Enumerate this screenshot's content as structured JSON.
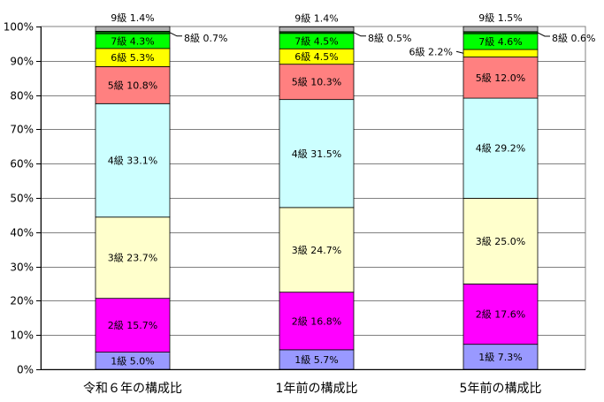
{
  "chart_data": {
    "type": "bar",
    "stacked": true,
    "percent": true,
    "title": "",
    "xlabel": "",
    "ylabel": "",
    "ylim": [
      0,
      100
    ],
    "y_ticks": [
      "0%",
      "10%",
      "20%",
      "30%",
      "40%",
      "50%",
      "60%",
      "70%",
      "80%",
      "90%",
      "100%"
    ],
    "grid": true,
    "legend": "none",
    "categories": [
      "令和６年の構成比",
      "1年前の構成比",
      "5年前の構成比"
    ],
    "series": [
      {
        "name": "1級",
        "color": "#9999ff",
        "values": [
          5.0,
          5.7,
          7.3
        ],
        "labels": [
          "1級 5.0%",
          "1級 5.7%",
          "1級 7.3%"
        ]
      },
      {
        "name": "2級",
        "color": "#ff00ff",
        "values": [
          15.7,
          16.8,
          17.6
        ],
        "labels": [
          "2級 15.7%",
          "2級 16.8%",
          "2級 17.6%"
        ]
      },
      {
        "name": "3級",
        "color": "#ffffcc",
        "values": [
          23.7,
          24.7,
          25.0
        ],
        "labels": [
          "3級 23.7%",
          "3級 24.7%",
          "3級 25.0%"
        ]
      },
      {
        "name": "4級",
        "color": "#ccffff",
        "values": [
          33.1,
          31.5,
          29.2
        ],
        "labels": [
          "4級 33.1%",
          "4級 31.5%",
          "4級 29.2%"
        ]
      },
      {
        "name": "5級",
        "color": "#ff8080",
        "values": [
          10.8,
          10.3,
          12.0
        ],
        "labels": [
          "5級 10.8%",
          "5級 10.3%",
          "5級 12.0%"
        ]
      },
      {
        "name": "6級",
        "color": "#ffff00",
        "values": [
          5.3,
          4.5,
          2.2
        ],
        "labels": [
          "6級 5.3%",
          "6級 4.5%",
          "6級 2.2%"
        ]
      },
      {
        "name": "7級",
        "color": "#00ff00",
        "values": [
          4.3,
          4.5,
          4.6
        ],
        "labels": [
          "7級 4.3%",
          "7級 4.5%",
          "7級 4.6%"
        ]
      },
      {
        "name": "8級",
        "color": "#006600",
        "values": [
          0.7,
          0.5,
          0.6
        ],
        "labels": [
          "8級 0.7%",
          "8級 0.5%",
          "8級 0.6%"
        ]
      },
      {
        "name": "9級",
        "color": "#b2b2b2",
        "values": [
          1.4,
          1.4,
          1.5
        ],
        "labels": [
          "9級 1.4%",
          "9級 1.4%",
          "9級 1.5%"
        ]
      }
    ]
  }
}
